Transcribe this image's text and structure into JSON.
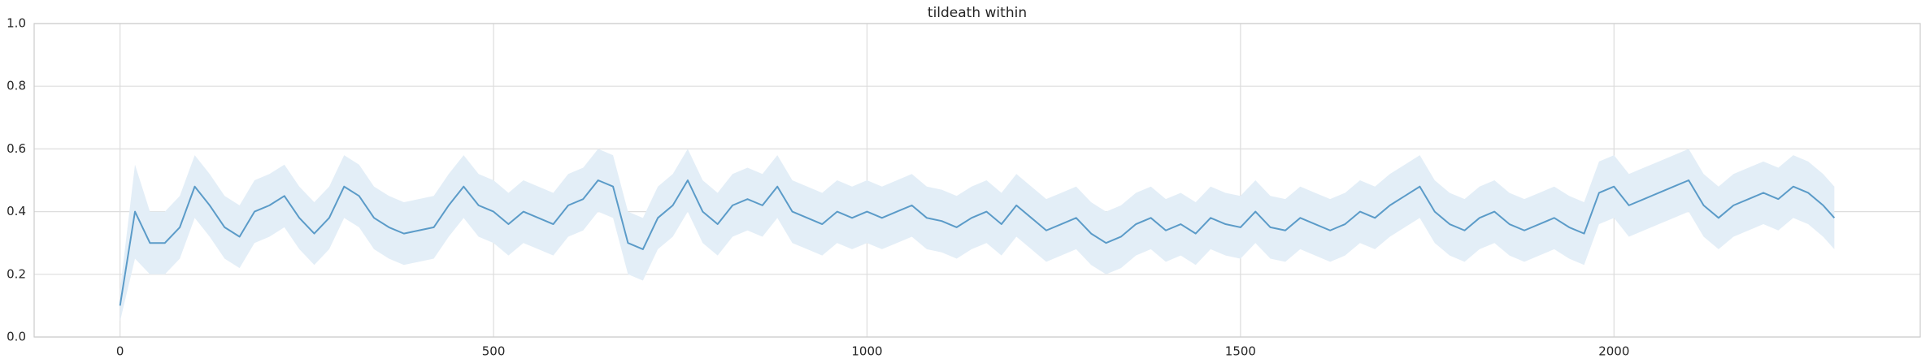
{
  "chart_data": {
    "type": "line",
    "title": "tildeath within",
    "x": [
      0,
      20,
      40,
      60,
      80,
      100,
      120,
      140,
      160,
      180,
      200,
      220,
      240,
      260,
      280,
      300,
      320,
      340,
      360,
      380,
      400,
      420,
      440,
      460,
      480,
      500,
      520,
      540,
      560,
      580,
      600,
      620,
      640,
      660,
      680,
      700,
      720,
      740,
      760,
      780,
      800,
      820,
      840,
      860,
      880,
      900,
      920,
      940,
      960,
      980,
      1000,
      1020,
      1040,
      1060,
      1080,
      1100,
      1120,
      1140,
      1160,
      1180,
      1200,
      1220,
      1240,
      1260,
      1280,
      1300,
      1320,
      1340,
      1360,
      1380,
      1400,
      1420,
      1440,
      1460,
      1480,
      1500,
      1520,
      1540,
      1560,
      1580,
      1600,
      1620,
      1640,
      1660,
      1680,
      1700,
      1720,
      1740,
      1760,
      1780,
      1800,
      1820,
      1840,
      1860,
      1880,
      1900,
      1920,
      1940,
      1960,
      1980,
      2000,
      2020,
      2040,
      2060,
      2080,
      2100,
      2120,
      2140,
      2160,
      2180,
      2200,
      2220,
      2240,
      2260,
      2280,
      2295
    ],
    "series": [
      {
        "color": "#5b9bc8",
        "band_color": "#e3eef7",
        "values": [
          0.1,
          0.4,
          0.3,
          0.3,
          0.35,
          0.48,
          0.42,
          0.35,
          0.32,
          0.4,
          0.42,
          0.45,
          0.38,
          0.33,
          0.38,
          0.48,
          0.45,
          0.38,
          0.35,
          0.33,
          0.34,
          0.35,
          0.42,
          0.48,
          0.42,
          0.4,
          0.36,
          0.4,
          0.38,
          0.36,
          0.42,
          0.44,
          0.5,
          0.48,
          0.3,
          0.28,
          0.38,
          0.42,
          0.5,
          0.4,
          0.36,
          0.42,
          0.44,
          0.42,
          0.48,
          0.4,
          0.38,
          0.36,
          0.4,
          0.38,
          0.4,
          0.38,
          0.4,
          0.42,
          0.38,
          0.37,
          0.35,
          0.38,
          0.4,
          0.36,
          0.42,
          0.38,
          0.34,
          0.36,
          0.38,
          0.33,
          0.3,
          0.32,
          0.36,
          0.38,
          0.34,
          0.36,
          0.33,
          0.38,
          0.36,
          0.35,
          0.4,
          0.35,
          0.34,
          0.38,
          0.36,
          0.34,
          0.36,
          0.4,
          0.38,
          0.42,
          0.45,
          0.48,
          0.4,
          0.36,
          0.34,
          0.38,
          0.4,
          0.36,
          0.34,
          0.36,
          0.38,
          0.35,
          0.33,
          0.46,
          0.48,
          0.42,
          0.44,
          0.46,
          0.48,
          0.5,
          0.42,
          0.38,
          0.42,
          0.44,
          0.46,
          0.44,
          0.48,
          0.46,
          0.42,
          0.38
        ],
        "lower": [
          0.05,
          0.25,
          0.2,
          0.2,
          0.25,
          0.38,
          0.32,
          0.25,
          0.22,
          0.3,
          0.32,
          0.35,
          0.28,
          0.23,
          0.28,
          0.38,
          0.35,
          0.28,
          0.25,
          0.23,
          0.24,
          0.25,
          0.32,
          0.38,
          0.32,
          0.3,
          0.26,
          0.3,
          0.28,
          0.26,
          0.32,
          0.34,
          0.4,
          0.38,
          0.2,
          0.18,
          0.28,
          0.32,
          0.4,
          0.3,
          0.26,
          0.32,
          0.34,
          0.32,
          0.38,
          0.3,
          0.28,
          0.26,
          0.3,
          0.28,
          0.3,
          0.28,
          0.3,
          0.32,
          0.28,
          0.27,
          0.25,
          0.28,
          0.3,
          0.26,
          0.32,
          0.28,
          0.24,
          0.26,
          0.28,
          0.23,
          0.2,
          0.22,
          0.26,
          0.28,
          0.24,
          0.26,
          0.23,
          0.28,
          0.26,
          0.25,
          0.3,
          0.25,
          0.24,
          0.28,
          0.26,
          0.24,
          0.26,
          0.3,
          0.28,
          0.32,
          0.35,
          0.38,
          0.3,
          0.26,
          0.24,
          0.28,
          0.3,
          0.26,
          0.24,
          0.26,
          0.28,
          0.25,
          0.23,
          0.36,
          0.38,
          0.32,
          0.34,
          0.36,
          0.38,
          0.4,
          0.32,
          0.28,
          0.32,
          0.34,
          0.36,
          0.34,
          0.38,
          0.36,
          0.32,
          0.28
        ],
        "upper": [
          0.15,
          0.55,
          0.4,
          0.4,
          0.45,
          0.58,
          0.52,
          0.45,
          0.42,
          0.5,
          0.52,
          0.55,
          0.48,
          0.43,
          0.48,
          0.58,
          0.55,
          0.48,
          0.45,
          0.43,
          0.44,
          0.45,
          0.52,
          0.58,
          0.52,
          0.5,
          0.46,
          0.5,
          0.48,
          0.46,
          0.52,
          0.54,
          0.6,
          0.58,
          0.4,
          0.38,
          0.48,
          0.52,
          0.6,
          0.5,
          0.46,
          0.52,
          0.54,
          0.52,
          0.58,
          0.5,
          0.48,
          0.46,
          0.5,
          0.48,
          0.5,
          0.48,
          0.5,
          0.52,
          0.48,
          0.47,
          0.45,
          0.48,
          0.5,
          0.46,
          0.52,
          0.48,
          0.44,
          0.46,
          0.48,
          0.43,
          0.4,
          0.42,
          0.46,
          0.48,
          0.44,
          0.46,
          0.43,
          0.48,
          0.46,
          0.45,
          0.5,
          0.45,
          0.44,
          0.48,
          0.46,
          0.44,
          0.46,
          0.5,
          0.48,
          0.52,
          0.55,
          0.58,
          0.5,
          0.46,
          0.44,
          0.48,
          0.5,
          0.46,
          0.44,
          0.46,
          0.48,
          0.45,
          0.43,
          0.56,
          0.58,
          0.52,
          0.54,
          0.56,
          0.58,
          0.6,
          0.52,
          0.48,
          0.52,
          0.54,
          0.56,
          0.54,
          0.58,
          0.56,
          0.52,
          0.48
        ]
      }
    ],
    "xlim": [
      -115,
      2410
    ],
    "xticks": [
      0,
      500,
      1000,
      1500,
      2000
    ],
    "ylim": [
      0,
      1
    ],
    "yticks": [
      {
        "value": 0,
        "label": "0.0"
      },
      0.2,
      0.4,
      0.6,
      0.8,
      {
        "value": 1,
        "label": "1.0"
      }
    ],
    "grid": true
  }
}
